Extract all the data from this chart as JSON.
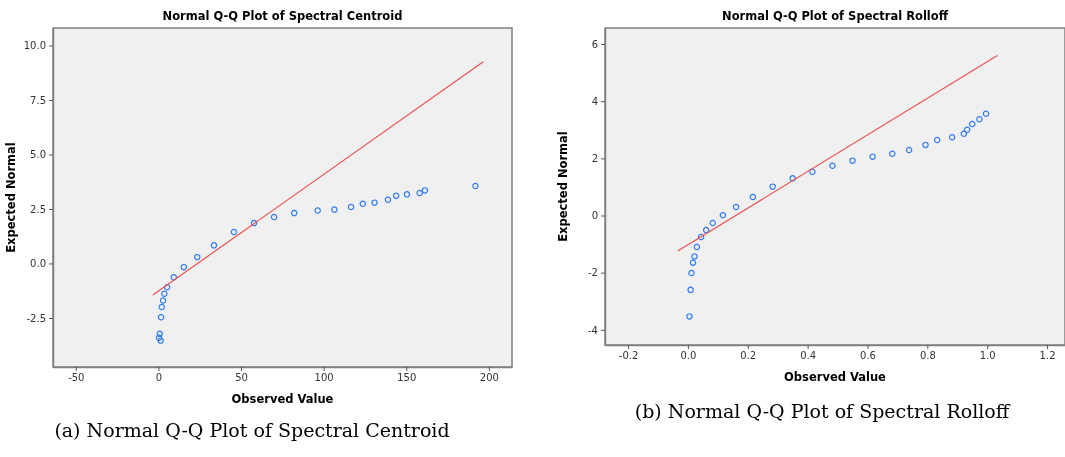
{
  "chart_data": [
    {
      "type": "scatter",
      "title": "Normal Q-Q Plot of Spectral Centroid",
      "xlabel": "Observed Value",
      "ylabel": "Expected Normal",
      "annotations": [
        "(a) Normal Q-Q Plot of Spectral Centroid"
      ],
      "xlim": [
        -63.8,
        214
      ],
      "ylim": [
        -4.75,
        10.8
      ],
      "xticks": [
        -50,
        0,
        50,
        100,
        150,
        200
      ],
      "yticks": [
        {
          "value": -2.5,
          "label": "-2.5"
        },
        {
          "value": 0,
          "label": "0.0"
        },
        {
          "value": 2.5,
          "label": "2.5"
        },
        {
          "value": 5,
          "label": "5.0"
        },
        {
          "value": 7.5,
          "label": "7.5"
        },
        {
          "value": 10,
          "label": "10.0"
        }
      ],
      "series": [
        {
          "marker": "circle",
          "color": "#2f7bf2",
          "x": [
            1.4,
            0.4,
            0.8,
            1.6,
            2.0,
            2.8,
            3.6,
            5.3,
            9.3,
            15.4,
            23.5,
            33.6,
            45.7,
            57.9,
            70,
            82.2,
            96.4,
            106.5,
            116.6,
            123.7,
            130.8,
            138.9,
            143.9,
            150.4,
            158.1,
            161.3,
            191.9
          ],
          "values": [
            -3.54,
            -3.41,
            -3.23,
            -2.47,
            -2.0,
            -1.7,
            -1.39,
            -1.09,
            -0.63,
            -0.17,
            0.29,
            0.83,
            1.44,
            1.85,
            2.13,
            2.31,
            2.43,
            2.47,
            2.59,
            2.74,
            2.79,
            2.92,
            3.11,
            3.17,
            3.23,
            3.35,
            3.55
          ]
        },
        {
          "type": "line",
          "marker": "none",
          "color": "#e8534f",
          "x": [
            -3.4,
            196.6
          ],
          "values": [
            -1.45,
            9.25
          ]
        }
      ]
    },
    {
      "type": "scatter",
      "title": "Normal Q-Q Plot of Spectral Rolloff",
      "xlabel": "Observed Value",
      "ylabel": "Expected Normal",
      "annotations": [
        "(b) Normal Q-Q Plot of Spectral Rolloff"
      ],
      "xlim": [
        -0.277,
        1.26
      ],
      "ylim": [
        -4.53,
        6.56
      ],
      "xticks": [
        {
          "value": -0.2,
          "label": "-0.2"
        },
        {
          "value": 0,
          "label": "0.0"
        },
        {
          "value": 0.2,
          "label": "0.2"
        },
        {
          "value": 0.4,
          "label": "0.4"
        },
        {
          "value": 0.6,
          "label": "0.6"
        },
        {
          "value": 0.8,
          "label": "0.8"
        },
        {
          "value": 1,
          "label": "1.0"
        },
        {
          "value": 1.2,
          "label": "1.2"
        }
      ],
      "yticks": [
        -4,
        -2,
        0,
        2,
        4,
        6
      ],
      "series": [
        {
          "marker": "circle",
          "color": "#2f7bf2",
          "x": [
            0.005,
            0.009,
            0.012,
            0.017,
            0.022,
            0.03,
            0.044,
            0.061,
            0.083,
            0.117,
            0.161,
            0.217,
            0.283,
            0.35,
            0.416,
            0.483,
            0.55,
            0.617,
            0.683,
            0.739,
            0.794,
            0.833,
            0.883,
            0.922,
            0.933,
            0.95,
            0.974,
            0.996
          ],
          "values": [
            -3.53,
            -2.6,
            -2.01,
            -1.65,
            -1.43,
            -1.1,
            -0.75,
            -0.51,
            -0.26,
            0.01,
            0.3,
            0.65,
            1.01,
            1.3,
            1.53,
            1.74,
            1.92,
            2.06,
            2.16,
            2.29,
            2.47,
            2.64,
            2.74,
            2.86,
            3.0,
            3.2,
            3.37,
            3.56
          ]
        },
        {
          "type": "line",
          "marker": "none",
          "color": "#e8534f",
          "x": [
            -0.034,
            1.034
          ],
          "values": [
            -1.24,
            5.6
          ]
        }
      ]
    }
  ]
}
